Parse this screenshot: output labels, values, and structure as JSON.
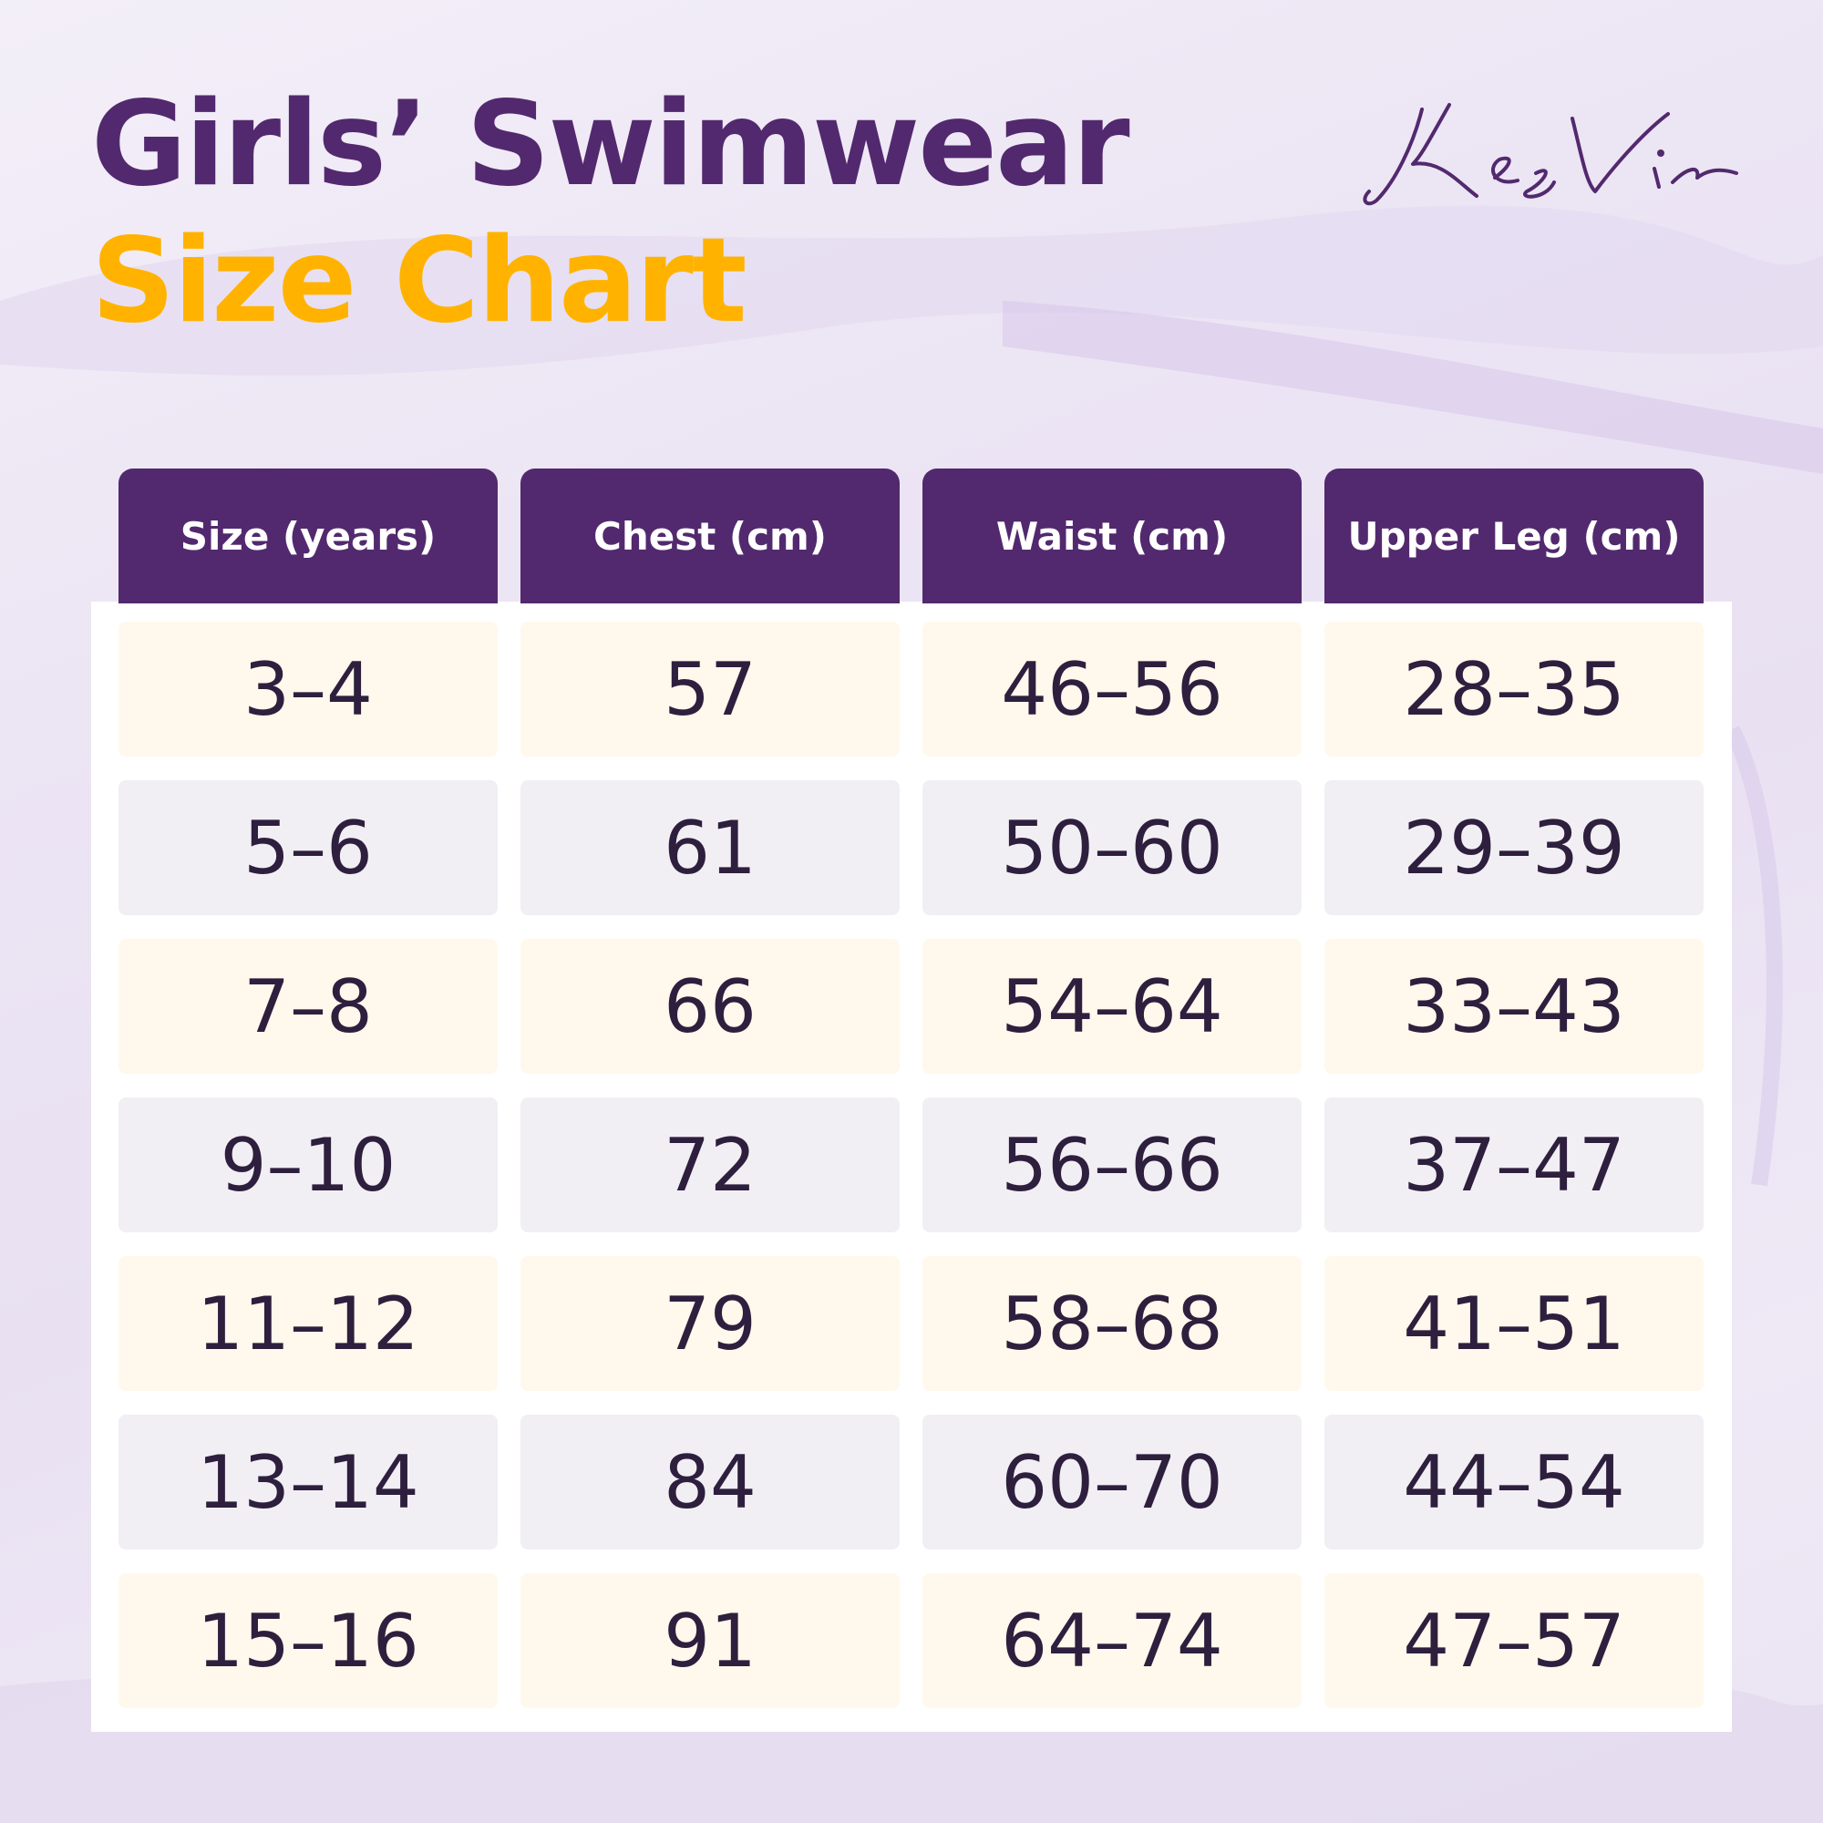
{
  "title_line1": "Girls’ Swimwear",
  "title_line2": "Size Chart",
  "brand": "KesVir",
  "colors": {
    "purple": "#52296e",
    "gold": "#ffb300",
    "row_cream": "#fff8ec",
    "row_gray": "#f1eff4"
  },
  "chart_data": {
    "type": "table",
    "columns": [
      "Size (years)",
      "Chest (cm)",
      "Waist (cm)",
      "Upper Leg (cm)"
    ],
    "rows": [
      [
        "3–4",
        "57",
        "46–56",
        "28–35"
      ],
      [
        "5–6",
        "61",
        "50–60",
        "29–39"
      ],
      [
        "7–8",
        "66",
        "54–64",
        "33–43"
      ],
      [
        "9–10",
        "72",
        "56–66",
        "37–47"
      ],
      [
        "11–12",
        "79",
        "58–68",
        "41–51"
      ],
      [
        "13–14",
        "84",
        "60–70",
        "44–54"
      ],
      [
        "15–16",
        "91",
        "64–74",
        "47–57"
      ]
    ]
  }
}
